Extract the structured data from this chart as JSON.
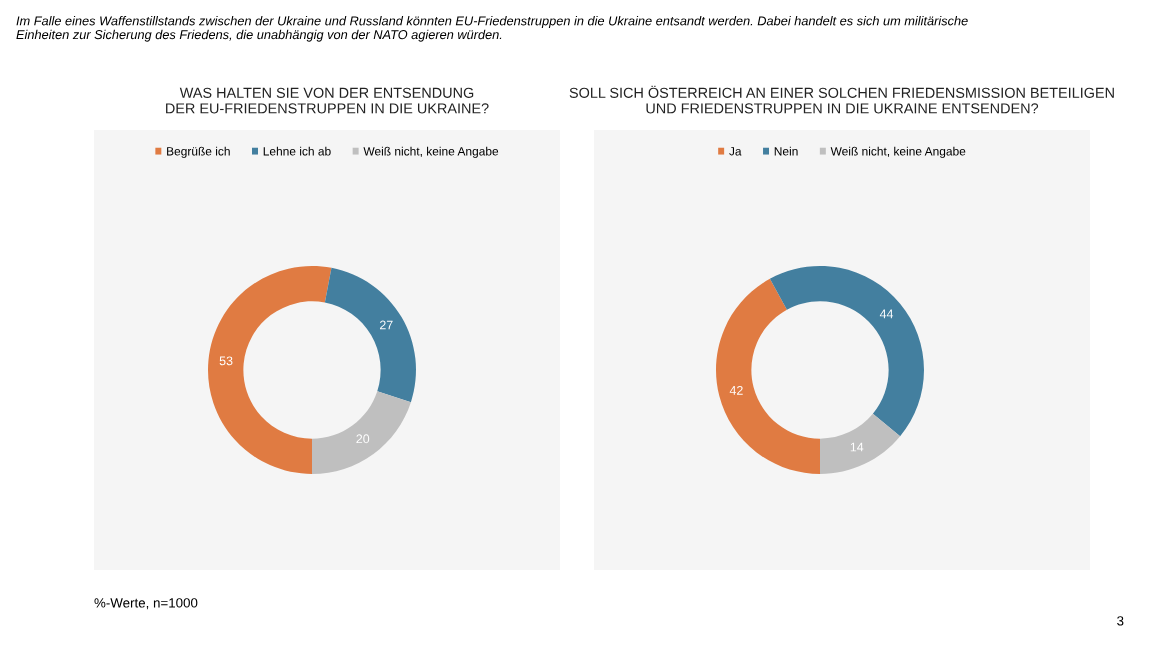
{
  "chart_data": [
    {
      "type": "donut",
      "title": "WAS HALTEN SIE VON DER ENTSENDUNG\nDER EU-FRIEDENSTRUPPEN IN DIE UKRAINE?",
      "categories": [
        "Begrüße ich",
        "Lehne ich ab",
        "Weiß nicht, keine Angabe"
      ],
      "values": [
        53,
        27,
        20
      ],
      "colors": [
        "#e07b42",
        "#437f9f",
        "#bfbfbf"
      ],
      "data_labels": true,
      "legend": "top",
      "annotations": [
        "Im Falle eines Waffenstillstands zwischen der Ukraine und Russland könnten EU-Friedenstruppen in die Ukraine entsandt werden. Dabei handelt es sich um militärische Einheiten zur Sicherung des Friedens, die unabhängig von der NATO agieren würden.",
        "%-Werte, n=1000",
        "3"
      ]
    },
    {
      "type": "donut",
      "title": "SOLL SICH ÖSTERREICH AN EINER SOLCHEN FRIEDENSMISSION BETEILIGEN\nUND FRIEDENSTRUPPEN IN DIE UKRAINE ENTSENDEN?",
      "categories": [
        "Ja",
        "Nein",
        "Weiß nicht, keine Angabe"
      ],
      "values": [
        42,
        44,
        14
      ],
      "colors": [
        "#e07b42",
        "#437f9f",
        "#bfbfbf"
      ],
      "data_labels": true,
      "legend": "top"
    }
  ]
}
